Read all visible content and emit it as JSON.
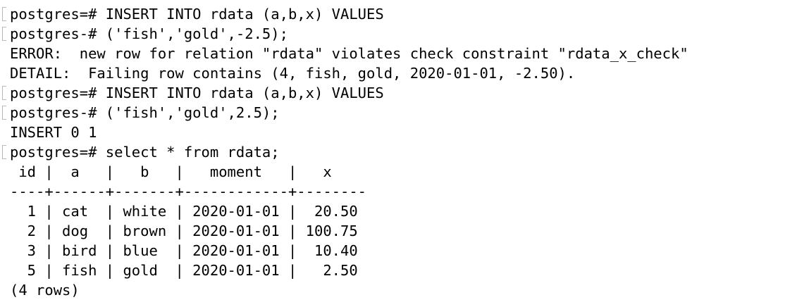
{
  "terminal": {
    "lines": [
      {
        "text": "postgres=# INSERT INTO rdata (a,b,x) VALUES",
        "marked": true
      },
      {
        "text": "postgres-# ('fish','gold',-2.5);",
        "marked": true
      },
      {
        "text": "ERROR:  new row for relation \"rdata\" violates check constraint \"rdata_x_check\"",
        "marked": false
      },
      {
        "text": "DETAIL:  Failing row contains (4, fish, gold, 2020-01-01, -2.50).",
        "marked": false
      },
      {
        "text": "postgres=# INSERT INTO rdata (a,b,x) VALUES",
        "marked": true
      },
      {
        "text": "postgres-# ('fish','gold',2.5);",
        "marked": true
      },
      {
        "text": "INSERT 0 1",
        "marked": false
      },
      {
        "text": "postgres=# select * from rdata;",
        "marked": true
      },
      {
        "text": " id |  a   |   b   |   moment   |   x    ",
        "marked": false
      },
      {
        "text": "----+------+-------+------------+--------",
        "marked": false
      },
      {
        "text": "  1 | cat  | white | 2020-01-01 |  20.50",
        "marked": false
      },
      {
        "text": "  2 | dog  | brown | 2020-01-01 | 100.75",
        "marked": false
      },
      {
        "text": "  3 | bird | blue  | 2020-01-01 |  10.40",
        "marked": false
      },
      {
        "text": "  5 | fish | gold  | 2020-01-01 |   2.50",
        "marked": false
      },
      {
        "text": "(4 rows)",
        "marked": false
      }
    ]
  }
}
